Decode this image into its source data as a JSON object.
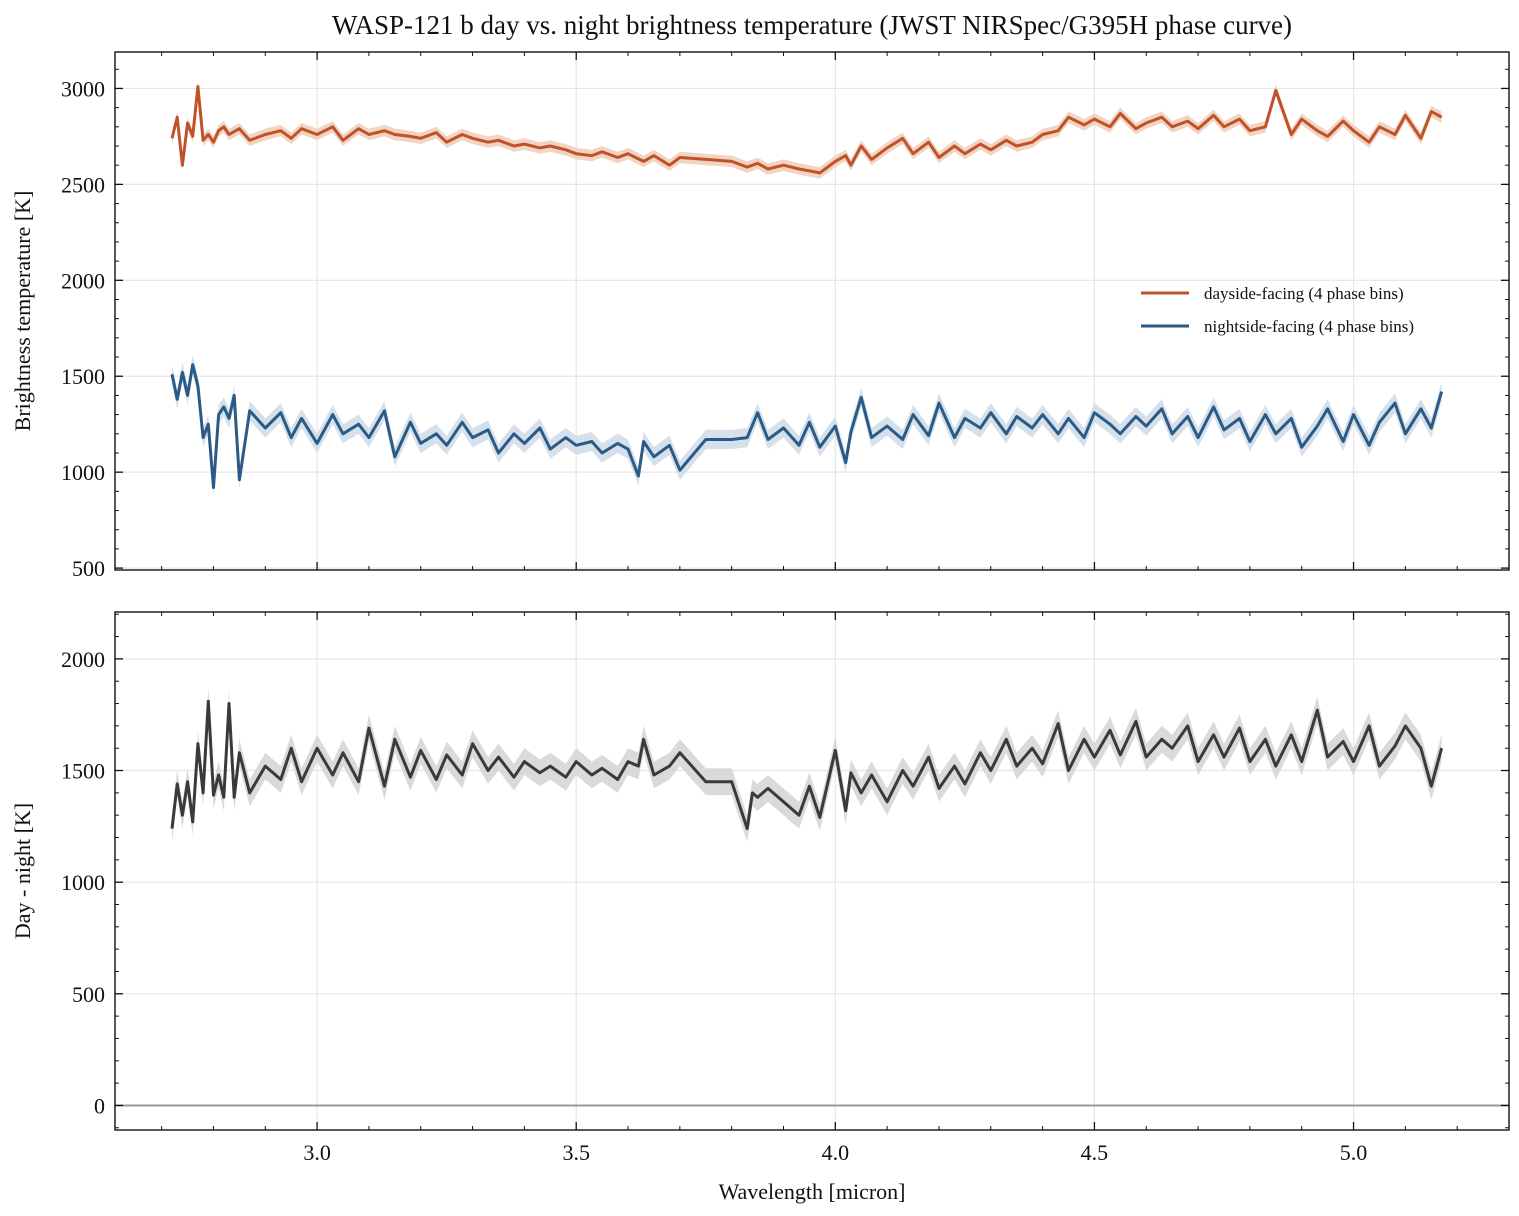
{
  "chart_data": [
    {
      "type": "line",
      "title": "WASP-121 b day vs. night brightness temperature (JWST NIRSpec/G395H phase curve)",
      "xlabel": "",
      "ylabel": "Brightness temperature [K]",
      "xlim": [
        2.61,
        5.3
      ],
      "ylim": [
        490,
        3190
      ],
      "xticks": [
        3.0,
        3.5,
        4.0,
        4.5,
        5.0
      ],
      "yticks": [
        500,
        1000,
        1500,
        2000,
        2500,
        3000
      ],
      "grid": true,
      "legend_position": "center-right",
      "series": [
        {
          "name": "dayside-facing (4 phase bins)",
          "color": "#c0522a",
          "band_color": "#f0cdb8",
          "x": [
            2.72,
            2.73,
            2.74,
            2.75,
            2.76,
            2.77,
            2.78,
            2.79,
            2.8,
            2.81,
            2.82,
            2.83,
            2.85,
            2.87,
            2.9,
            2.93,
            2.95,
            2.97,
            3.0,
            3.03,
            3.05,
            3.08,
            3.1,
            3.13,
            3.15,
            3.18,
            3.2,
            3.23,
            3.25,
            3.28,
            3.3,
            3.33,
            3.35,
            3.38,
            3.4,
            3.43,
            3.45,
            3.48,
            3.5,
            3.53,
            3.55,
            3.58,
            3.6,
            3.63,
            3.65,
            3.68,
            3.7,
            3.75,
            3.8,
            3.83,
            3.85,
            3.87,
            3.9,
            3.93,
            3.95,
            3.97,
            4.0,
            4.02,
            4.03,
            4.05,
            4.07,
            4.1,
            4.13,
            4.15,
            4.18,
            4.2,
            4.23,
            4.25,
            4.28,
            4.3,
            4.33,
            4.35,
            4.38,
            4.4,
            4.43,
            4.45,
            4.48,
            4.5,
            4.53,
            4.55,
            4.58,
            4.6,
            4.63,
            4.65,
            4.68,
            4.7,
            4.73,
            4.75,
            4.78,
            4.8,
            4.83,
            4.85,
            4.88,
            4.9,
            4.93,
            4.95,
            4.98,
            5.0,
            5.03,
            5.05,
            5.08,
            5.1,
            5.13,
            5.15,
            5.17
          ],
          "values": [
            2740,
            2850,
            2600,
            2820,
            2750,
            3010,
            2730,
            2760,
            2720,
            2780,
            2800,
            2760,
            2790,
            2730,
            2760,
            2780,
            2740,
            2790,
            2760,
            2800,
            2730,
            2790,
            2760,
            2780,
            2760,
            2750,
            2740,
            2770,
            2720,
            2760,
            2740,
            2720,
            2730,
            2700,
            2710,
            2690,
            2700,
            2680,
            2660,
            2650,
            2670,
            2640,
            2660,
            2620,
            2650,
            2600,
            2640,
            2630,
            2620,
            2590,
            2610,
            2580,
            2600,
            2580,
            2570,
            2560,
            2620,
            2650,
            2600,
            2700,
            2630,
            2690,
            2740,
            2660,
            2720,
            2640,
            2700,
            2660,
            2710,
            2680,
            2730,
            2700,
            2720,
            2760,
            2780,
            2850,
            2810,
            2840,
            2800,
            2870,
            2790,
            2820,
            2850,
            2800,
            2830,
            2790,
            2860,
            2800,
            2840,
            2780,
            2800,
            2990,
            2760,
            2840,
            2780,
            2750,
            2830,
            2780,
            2720,
            2800,
            2760,
            2860,
            2740,
            2880,
            2850
          ],
          "uncertainty": 30
        },
        {
          "name": "nightside-facing (4 phase bins)",
          "color": "#2a5b87",
          "band_color": "#cfdbe8",
          "x": [
            2.72,
            2.73,
            2.74,
            2.75,
            2.76,
            2.77,
            2.78,
            2.79,
            2.8,
            2.81,
            2.82,
            2.83,
            2.84,
            2.85,
            2.87,
            2.9,
            2.93,
            2.95,
            2.97,
            3.0,
            3.03,
            3.05,
            3.08,
            3.1,
            3.13,
            3.15,
            3.18,
            3.2,
            3.23,
            3.25,
            3.28,
            3.3,
            3.33,
            3.35,
            3.38,
            3.4,
            3.43,
            3.45,
            3.48,
            3.5,
            3.53,
            3.55,
            3.58,
            3.6,
            3.62,
            3.63,
            3.65,
            3.68,
            3.7,
            3.75,
            3.8,
            3.83,
            3.85,
            3.87,
            3.9,
            3.93,
            3.95,
            3.97,
            4.0,
            4.02,
            4.03,
            4.05,
            4.07,
            4.1,
            4.13,
            4.15,
            4.18,
            4.2,
            4.23,
            4.25,
            4.28,
            4.3,
            4.33,
            4.35,
            4.38,
            4.4,
            4.43,
            4.45,
            4.48,
            4.5,
            4.53,
            4.55,
            4.58,
            4.6,
            4.63,
            4.65,
            4.68,
            4.7,
            4.73,
            4.75,
            4.78,
            4.8,
            4.83,
            4.85,
            4.88,
            4.9,
            4.93,
            4.95,
            4.98,
            5.0,
            5.03,
            5.05,
            5.08,
            5.1,
            5.13,
            5.15,
            5.17
          ],
          "values": [
            1510,
            1380,
            1520,
            1400,
            1560,
            1450,
            1180,
            1250,
            920,
            1300,
            1340,
            1280,
            1400,
            960,
            1320,
            1230,
            1310,
            1180,
            1280,
            1150,
            1300,
            1200,
            1250,
            1180,
            1320,
            1080,
            1260,
            1150,
            1200,
            1140,
            1260,
            1180,
            1220,
            1100,
            1200,
            1150,
            1230,
            1120,
            1180,
            1140,
            1160,
            1100,
            1150,
            1120,
            980,
            1160,
            1080,
            1140,
            1010,
            1170,
            1170,
            1180,
            1310,
            1170,
            1230,
            1140,
            1260,
            1130,
            1240,
            1050,
            1210,
            1390,
            1180,
            1240,
            1170,
            1300,
            1190,
            1360,
            1180,
            1280,
            1230,
            1310,
            1200,
            1290,
            1230,
            1300,
            1200,
            1280,
            1180,
            1310,
            1250,
            1200,
            1290,
            1240,
            1330,
            1200,
            1290,
            1180,
            1340,
            1220,
            1280,
            1160,
            1300,
            1200,
            1280,
            1130,
            1240,
            1330,
            1160,
            1300,
            1140,
            1260,
            1360,
            1200,
            1330,
            1230,
            1420
          ],
          "uncertainty": 50
        }
      ]
    },
    {
      "type": "line",
      "title": "",
      "xlabel": "Wavelength [micron]",
      "ylabel": "Day - night [K]",
      "xlim": [
        2.61,
        5.3
      ],
      "ylim": [
        -110,
        2210
      ],
      "xticks": [
        3.0,
        3.5,
        4.0,
        4.5,
        5.0
      ],
      "yticks": [
        0,
        500,
        1000,
        1500,
        2000
      ],
      "xticklabels": [
        "3.0",
        "3.5",
        "4.0",
        "4.5",
        "5.0"
      ],
      "grid": true,
      "reference_line": 0,
      "series": [
        {
          "color": "#3a3a3a",
          "band_color": "#d3d3d3",
          "x": [
            2.72,
            2.73,
            2.74,
            2.75,
            2.76,
            2.77,
            2.78,
            2.79,
            2.8,
            2.81,
            2.82,
            2.83,
            2.84,
            2.85,
            2.87,
            2.9,
            2.93,
            2.95,
            2.97,
            3.0,
            3.03,
            3.05,
            3.08,
            3.1,
            3.13,
            3.15,
            3.18,
            3.2,
            3.23,
            3.25,
            3.28,
            3.3,
            3.33,
            3.35,
            3.38,
            3.4,
            3.43,
            3.45,
            3.48,
            3.5,
            3.53,
            3.55,
            3.58,
            3.6,
            3.62,
            3.63,
            3.65,
            3.68,
            3.7,
            3.75,
            3.8,
            3.83,
            3.84,
            3.85,
            3.87,
            3.9,
            3.93,
            3.95,
            3.97,
            4.0,
            4.02,
            4.03,
            4.05,
            4.07,
            4.1,
            4.13,
            4.15,
            4.18,
            4.2,
            4.23,
            4.25,
            4.28,
            4.3,
            4.33,
            4.35,
            4.38,
            4.4,
            4.43,
            4.45,
            4.48,
            4.5,
            4.53,
            4.55,
            4.58,
            4.6,
            4.63,
            4.65,
            4.68,
            4.7,
            4.73,
            4.75,
            4.78,
            4.8,
            4.83,
            4.85,
            4.88,
            4.9,
            4.93,
            4.95,
            4.98,
            5.0,
            5.03,
            5.05,
            5.08,
            5.1,
            5.13,
            5.15,
            5.17
          ],
          "values": [
            1240,
            1440,
            1300,
            1450,
            1270,
            1620,
            1400,
            1810,
            1390,
            1480,
            1380,
            1800,
            1380,
            1580,
            1400,
            1520,
            1460,
            1600,
            1450,
            1600,
            1480,
            1580,
            1450,
            1690,
            1430,
            1640,
            1470,
            1590,
            1460,
            1570,
            1480,
            1620,
            1500,
            1560,
            1470,
            1540,
            1490,
            1520,
            1470,
            1540,
            1480,
            1510,
            1460,
            1540,
            1520,
            1640,
            1480,
            1520,
            1580,
            1450,
            1450,
            1240,
            1400,
            1380,
            1420,
            1360,
            1300,
            1430,
            1290,
            1590,
            1320,
            1490,
            1400,
            1480,
            1360,
            1500,
            1430,
            1560,
            1420,
            1520,
            1440,
            1580,
            1500,
            1640,
            1520,
            1600,
            1530,
            1710,
            1500,
            1640,
            1560,
            1680,
            1570,
            1720,
            1560,
            1640,
            1600,
            1700,
            1540,
            1660,
            1560,
            1690,
            1540,
            1640,
            1520,
            1660,
            1540,
            1770,
            1560,
            1630,
            1540,
            1700,
            1520,
            1610,
            1700,
            1600,
            1430,
            1600
          ]
        }
      ]
    }
  ]
}
